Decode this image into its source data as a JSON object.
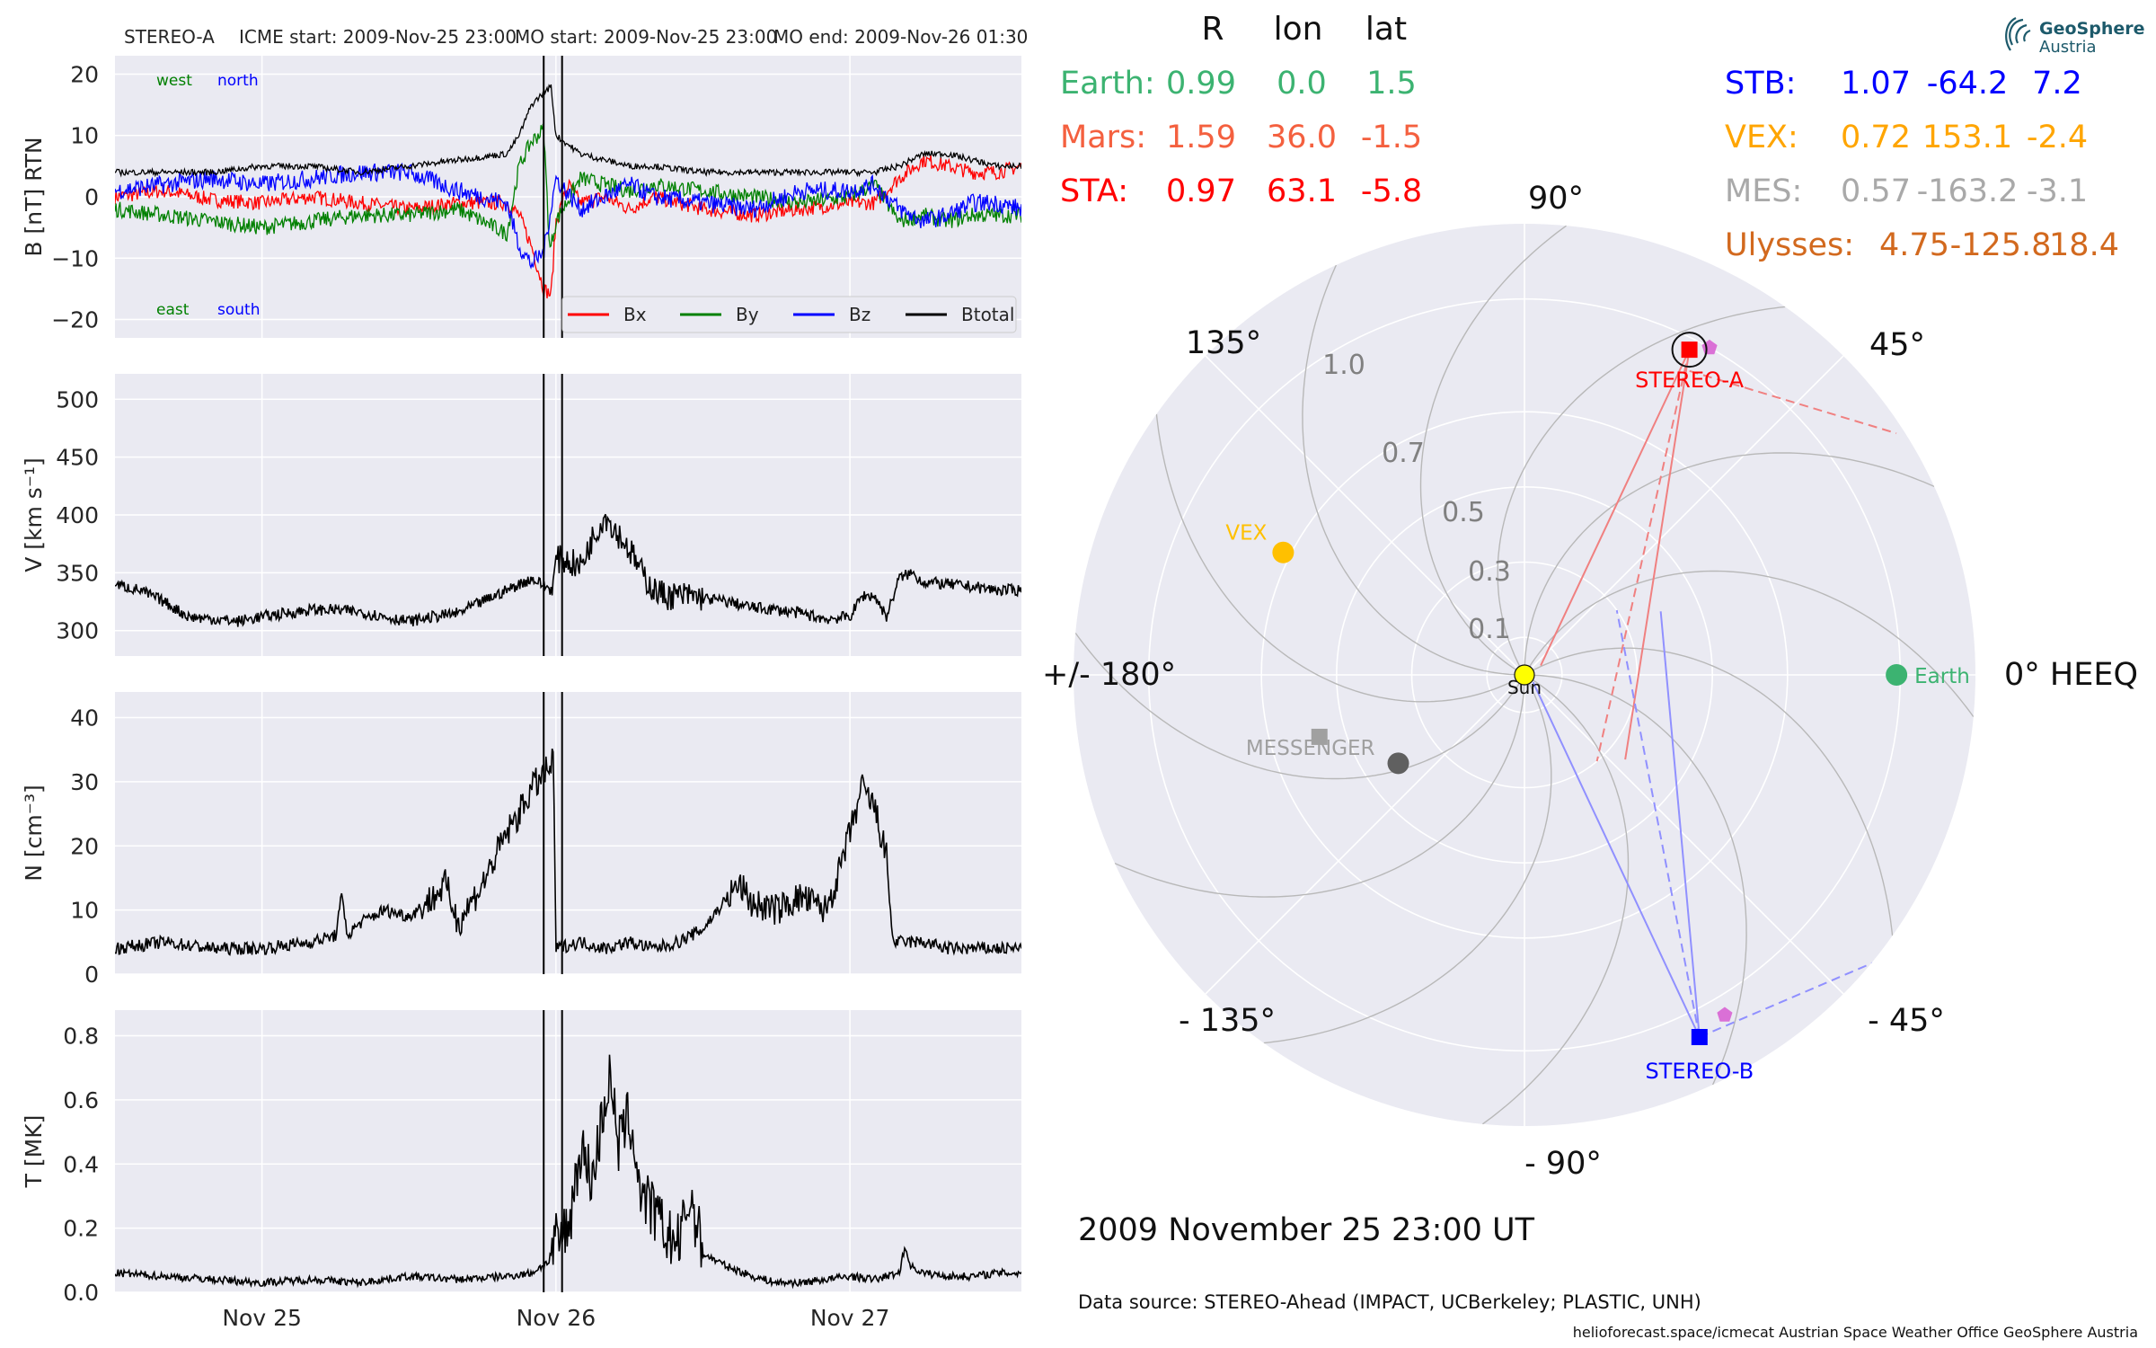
{
  "header": {
    "spacecraft": "STEREO-A",
    "icme_start": "ICME start: 2009-Nov-25 23:00",
    "mo_start": "MO start: 2009-Nov-25 23:00",
    "mo_end": "MO end: 2009-Nov-26 01:30"
  },
  "logo": {
    "line1": "GeoSphere",
    "line2": "Austria",
    "color": "#1d5a6b"
  },
  "date_label": "2009 November 25  23:00 UT",
  "data_source": "Data source: STEREO-Ahead (IMPACT, UCBerkeley; PLASTIC, UNH)",
  "footer": "helioforecast.space/icmecat   Austrian Space Weather Office   GeoSphere Austria",
  "chart_data": [
    {
      "type": "line",
      "panel": "B",
      "ylabel": "B [nT] RTN",
      "ylim": [
        -23,
        23
      ],
      "yticks": [
        -20,
        -10,
        0,
        10,
        20
      ],
      "ytick_labels": [
        "−20",
        "−10",
        "0",
        "10",
        "20"
      ],
      "xlim": [
        0,
        74
      ],
      "xunit_note": "hours from 2009-Nov-24 12:00",
      "xticks": [
        12,
        36,
        60
      ],
      "xtick_labels": [
        "Nov 25",
        "Nov 26",
        "Nov 27"
      ],
      "annotations": {
        "west": "west",
        "north": "north",
        "east": "east",
        "south": "south"
      },
      "legend_position": "lower-right",
      "series": [
        {
          "name": "Bx",
          "color": "#ff0000",
          "x": [
            0,
            4,
            8,
            12,
            16,
            20,
            24,
            28,
            32,
            33,
            34,
            35,
            35.6,
            36,
            37,
            38,
            40,
            42,
            44,
            48,
            52,
            56,
            60,
            62,
            64,
            66,
            68,
            70,
            72,
            74
          ],
          "y": [
            0,
            1,
            -0.5,
            -1,
            0,
            -1,
            -2,
            -1,
            -1,
            -3,
            -8,
            -15,
            -16,
            -4,
            2,
            -1,
            0,
            -2,
            0,
            -2,
            -3,
            -2,
            -1,
            -1,
            3,
            6,
            5,
            4,
            4,
            5
          ]
        },
        {
          "name": "By",
          "color": "#008000",
          "x": [
            0,
            4,
            8,
            12,
            16,
            20,
            24,
            28,
            30,
            32,
            33,
            34,
            35,
            35.5,
            36,
            38,
            40,
            42,
            44,
            48,
            52,
            56,
            60,
            62,
            64,
            66,
            68,
            70,
            72,
            74
          ],
          "y": [
            -2,
            -3,
            -4,
            -5,
            -4,
            -3,
            -3,
            -2,
            -4,
            -6,
            5,
            9,
            11,
            -9,
            -4,
            3,
            2,
            1,
            2,
            1,
            0,
            -1,
            0,
            2,
            -4,
            -3,
            -4,
            -3,
            -3,
            -3
          ]
        },
        {
          "name": "Bz",
          "color": "#0000ff",
          "x": [
            0,
            4,
            8,
            12,
            16,
            20,
            24,
            28,
            32,
            33,
            34,
            35,
            35.5,
            36,
            38,
            40,
            42,
            44,
            48,
            52,
            56,
            60,
            62,
            64,
            66,
            68,
            70,
            72,
            74
          ],
          "y": [
            1,
            2,
            3,
            2,
            3,
            4,
            4,
            1,
            -1,
            -8,
            -11,
            -9,
            -3,
            3,
            -2,
            0,
            2,
            0,
            -1,
            -2,
            1,
            1,
            2,
            -2,
            -4,
            -3,
            -1,
            -1,
            -2
          ]
        },
        {
          "name": "Btotal",
          "color": "#000000",
          "x": [
            0,
            4,
            8,
            12,
            16,
            20,
            24,
            28,
            32,
            33,
            34,
            35,
            35.6,
            36,
            38,
            40,
            42,
            44,
            48,
            52,
            56,
            60,
            62,
            64,
            66,
            68,
            70,
            72,
            74
          ],
          "y": [
            4,
            4,
            4,
            5,
            5,
            4,
            5,
            6,
            7,
            10,
            15,
            17,
            18,
            10,
            7,
            6,
            5,
            5,
            4,
            4,
            4,
            4,
            4,
            5,
            7,
            7,
            6,
            5,
            5
          ]
        }
      ]
    },
    {
      "type": "line",
      "panel": "V",
      "ylabel": "V [km s⁻¹]",
      "ylim": [
        278,
        522
      ],
      "yticks": [
        300,
        350,
        400,
        450,
        500
      ],
      "ytick_labels": [
        "300",
        "350",
        "400",
        "450",
        "500"
      ],
      "xlim": [
        0,
        74
      ],
      "series": [
        {
          "name": "",
          "color": "#000000",
          "x": [
            0,
            2,
            4,
            6,
            8,
            10,
            12,
            14,
            16,
            18,
            20,
            22,
            24,
            26,
            28,
            30,
            32,
            34,
            35.7,
            36,
            37,
            38,
            39,
            40,
            41,
            42,
            43,
            44,
            45,
            46,
            47,
            48,
            50,
            52,
            54,
            56,
            58,
            60,
            61,
            62,
            63,
            64,
            65,
            66,
            68,
            70,
            72,
            74
          ],
          "y": [
            340,
            335,
            325,
            312,
            310,
            308,
            312,
            315,
            318,
            318,
            316,
            312,
            308,
            312,
            315,
            325,
            335,
            345,
            335,
            362,
            360,
            355,
            380,
            400,
            385,
            370,
            350,
            335,
            330,
            330,
            330,
            328,
            325,
            320,
            318,
            315,
            310,
            312,
            330,
            330,
            312,
            345,
            350,
            342,
            340,
            338,
            335,
            335
          ]
        }
      ]
    },
    {
      "type": "line",
      "panel": "N",
      "ylabel": "N [cm⁻³]",
      "ylim": [
        0,
        44
      ],
      "yticks": [
        0,
        10,
        20,
        30,
        40
      ],
      "ytick_labels": [
        "0",
        "10",
        "20",
        "30",
        "40"
      ],
      "xlim": [
        0,
        74
      ],
      "series": [
        {
          "name": "",
          "color": "#000000",
          "x": [
            0,
            4,
            8,
            12,
            16,
            18,
            18.5,
            19,
            20,
            22,
            24,
            26,
            27,
            28,
            30,
            31,
            32,
            33,
            34,
            35,
            35.8,
            36,
            38,
            40,
            42,
            44,
            46,
            48,
            50,
            51,
            52,
            54,
            56,
            58,
            59,
            60,
            61,
            62,
            63,
            63.5,
            64,
            66,
            68,
            70,
            72,
            74
          ],
          "y": [
            4,
            5,
            4,
            4,
            5,
            6,
            12,
            6,
            8,
            10,
            9,
            12,
            14,
            8,
            14,
            18,
            22,
            25,
            29,
            31,
            33,
            4,
            5,
            4,
            5,
            4,
            5,
            7,
            12,
            14,
            11,
            10,
            12,
            10,
            15,
            22,
            29,
            26,
            18,
            5,
            5,
            5,
            4,
            4,
            4,
            4
          ]
        }
      ]
    },
    {
      "type": "line",
      "panel": "T",
      "ylabel": "T [MK]",
      "ylim": [
        0,
        0.88
      ],
      "yticks": [
        0.0,
        0.2,
        0.4,
        0.6,
        0.8
      ],
      "ytick_labels": [
        "0.0",
        "0.2",
        "0.4",
        "0.6",
        "0.8"
      ],
      "xlim": [
        0,
        74
      ],
      "xticks": [
        12,
        36,
        60
      ],
      "xtick_labels": [
        "Nov 25",
        "Nov 26",
        "Nov 27"
      ],
      "series": [
        {
          "name": "",
          "color": "#000000",
          "x": [
            0,
            4,
            8,
            12,
            16,
            20,
            24,
            28,
            32,
            34,
            35.6,
            36,
            37,
            38,
            39,
            40,
            40.5,
            41,
            42,
            43,
            44,
            45,
            46,
            47,
            48,
            49,
            50,
            52,
            54,
            56,
            58,
            60,
            62,
            64,
            64.5,
            65,
            66,
            68,
            70,
            72,
            74
          ],
          "y": [
            0.06,
            0.05,
            0.04,
            0.03,
            0.04,
            0.03,
            0.05,
            0.04,
            0.05,
            0.06,
            0.1,
            0.15,
            0.2,
            0.45,
            0.35,
            0.6,
            0.68,
            0.45,
            0.55,
            0.3,
            0.25,
            0.18,
            0.15,
            0.3,
            0.12,
            0.1,
            0.08,
            0.05,
            0.03,
            0.03,
            0.04,
            0.05,
            0.04,
            0.06,
            0.14,
            0.08,
            0.06,
            0.05,
            0.05,
            0.06,
            0.06
          ]
        }
      ]
    },
    {
      "type": "polar",
      "panel": "positions",
      "frame": "HEEQ",
      "r_max": 1.2,
      "rticks": [
        0.1,
        0.3,
        0.5,
        0.7,
        1.0
      ],
      "rtick_labels": [
        "0.1",
        "0.3",
        "0.5",
        "0.7",
        "1.0"
      ],
      "angle_labels": [
        {
          "deg": 0,
          "text": "0° HEEQ"
        },
        {
          "deg": 45,
          "text": "45°"
        },
        {
          "deg": 90,
          "text": "90°"
        },
        {
          "deg": 135,
          "text": "135°"
        },
        {
          "deg": 180,
          "text": "+/- 180°"
        },
        {
          "deg": -135,
          "text": "- 135°"
        },
        {
          "deg": -90,
          "text": "- 90°"
        },
        {
          "deg": -45,
          "text": "- 45°"
        }
      ],
      "table_columns": [
        "R",
        "lon",
        "lat"
      ],
      "table_left": [
        {
          "name": "Earth:",
          "r": "0.99",
          "lon": "0.0",
          "lat": "1.5",
          "color": "#3cb371"
        },
        {
          "name": "Mars:",
          "r": "1.59",
          "lon": "36.0",
          "lat": "-1.5",
          "color": "#f4603f"
        },
        {
          "name": "STA:",
          "r": "0.97",
          "lon": "63.1",
          "lat": "-5.8",
          "color": "#ff0000"
        }
      ],
      "table_right": [
        {
          "name": "STB:",
          "r": "1.07",
          "lon": "-64.2",
          "lat": "7.2",
          "color": "#0000ff"
        },
        {
          "name": "VEX:",
          "r": "0.72",
          "lon": "153.1",
          "lat": "-2.4",
          "color": "#ffa500"
        },
        {
          "name": "MES:",
          "r": "0.57",
          "lon": "-163.2",
          "lat": "-3.1",
          "color": "#a9a9a9"
        },
        {
          "name": "Ulysses:",
          "r": "4.75",
          "lon": "-125.8",
          "lat": "18.4",
          "color": "#d2691e"
        }
      ],
      "objects": [
        {
          "label": "Sun",
          "r": 0.0,
          "lon": 0.0,
          "marker": "circle",
          "color": "#ffff00"
        },
        {
          "label": "Earth",
          "r": 0.99,
          "lon": 0.0,
          "marker": "circle",
          "color": "#3cb371"
        },
        {
          "label": "STEREO-A",
          "r": 0.97,
          "lon": 63.1,
          "marker": "square",
          "color": "#ff0000"
        },
        {
          "label": "STEREO-B",
          "r": 1.07,
          "lon": -64.2,
          "marker": "square",
          "color": "#0000ff"
        },
        {
          "label": "VEX",
          "r": 0.72,
          "lon": 153.1,
          "marker": "circle",
          "color": "#ffc000"
        },
        {
          "label": "MESSENGER",
          "r": 0.57,
          "lon": -163.2,
          "marker": "square",
          "color": "#a0a0a0"
        },
        {
          "label": "",
          "r": 0.41,
          "lon": -145,
          "marker": "circle",
          "color": "#606060"
        },
        {
          "label": "",
          "r": 1.0,
          "lon": 60.5,
          "marker": "pentagon",
          "color": "#da70d6"
        },
        {
          "label": "",
          "r": 1.05,
          "lon": -59.5,
          "marker": "pentagon",
          "color": "#da70d6"
        }
      ]
    }
  ]
}
